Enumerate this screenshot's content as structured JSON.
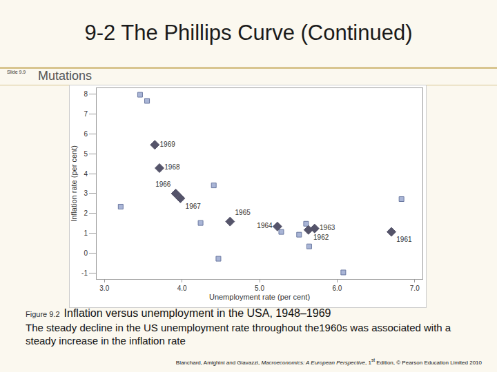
{
  "slide": {
    "title": "9-2 The Phillips Curve (Continued)",
    "slide_number": "Slide 9.9",
    "section": "Mutations",
    "figure_number": "Figure 9.2",
    "caption": "Inflation versus unemployment in the USA, 1948–1969",
    "description": "The steady decline in the US unemployment rate throughout the1960s was associated with a steady increase in the inflation rate",
    "footer": {
      "authors": "Blanchard, Amighini and Giavazzi, ",
      "book": "Macroeconomics: A European Perspective",
      "edition_pre": ", 1",
      "edition_sup": "st",
      "edition_post": " Edition, © Pearson Education Limited 2010"
    }
  },
  "chart_data": {
    "type": "scatter",
    "x_label": "Unemployment rate (per cent)",
    "y_label": "Inflation rate (per cent)",
    "xlim": [
      2.9,
      7.1
    ],
    "xticks": [
      {
        "value": 3,
        "label": "3.0"
      },
      {
        "value": 4,
        "label": "4.0"
      },
      {
        "value": 5,
        "label": "5.0"
      },
      {
        "value": 6,
        "label": "6.0"
      },
      {
        "value": 7,
        "label": "7.0"
      }
    ],
    "ylim": [
      -1.3,
      8.3
    ],
    "yticks": [
      -1,
      0,
      1,
      2,
      3,
      4,
      5,
      6,
      7,
      8
    ],
    "grid": false,
    "series": [
      {
        "marker": "square",
        "color": "#a9b5d6",
        "x": [
          3.46,
          3.55,
          3.21,
          4.41,
          4.24,
          4.47,
          5.28,
          5.6,
          5.51,
          5.64,
          6.08,
          6.83
        ],
        "values": [
          7.97,
          7.66,
          2.34,
          3.41,
          1.52,
          -0.28,
          1.07,
          1.48,
          0.93,
          0.34,
          -0.97,
          2.72
        ]
      },
      {
        "marker": "diamond",
        "color": "#55546a",
        "x": [
          3.65,
          3.71,
          3.92,
          3.98,
          4.62,
          5.23,
          5.71,
          5.63,
          6.7
        ],
        "values": [
          5.45,
          4.28,
          3.0,
          2.76,
          1.59,
          1.34,
          1.24,
          1.17,
          1.07
        ],
        "labels": [
          "1969",
          "1968",
          "1966",
          "1967",
          "1965",
          "1964",
          "1963",
          "1962",
          "1961"
        ]
      }
    ]
  }
}
